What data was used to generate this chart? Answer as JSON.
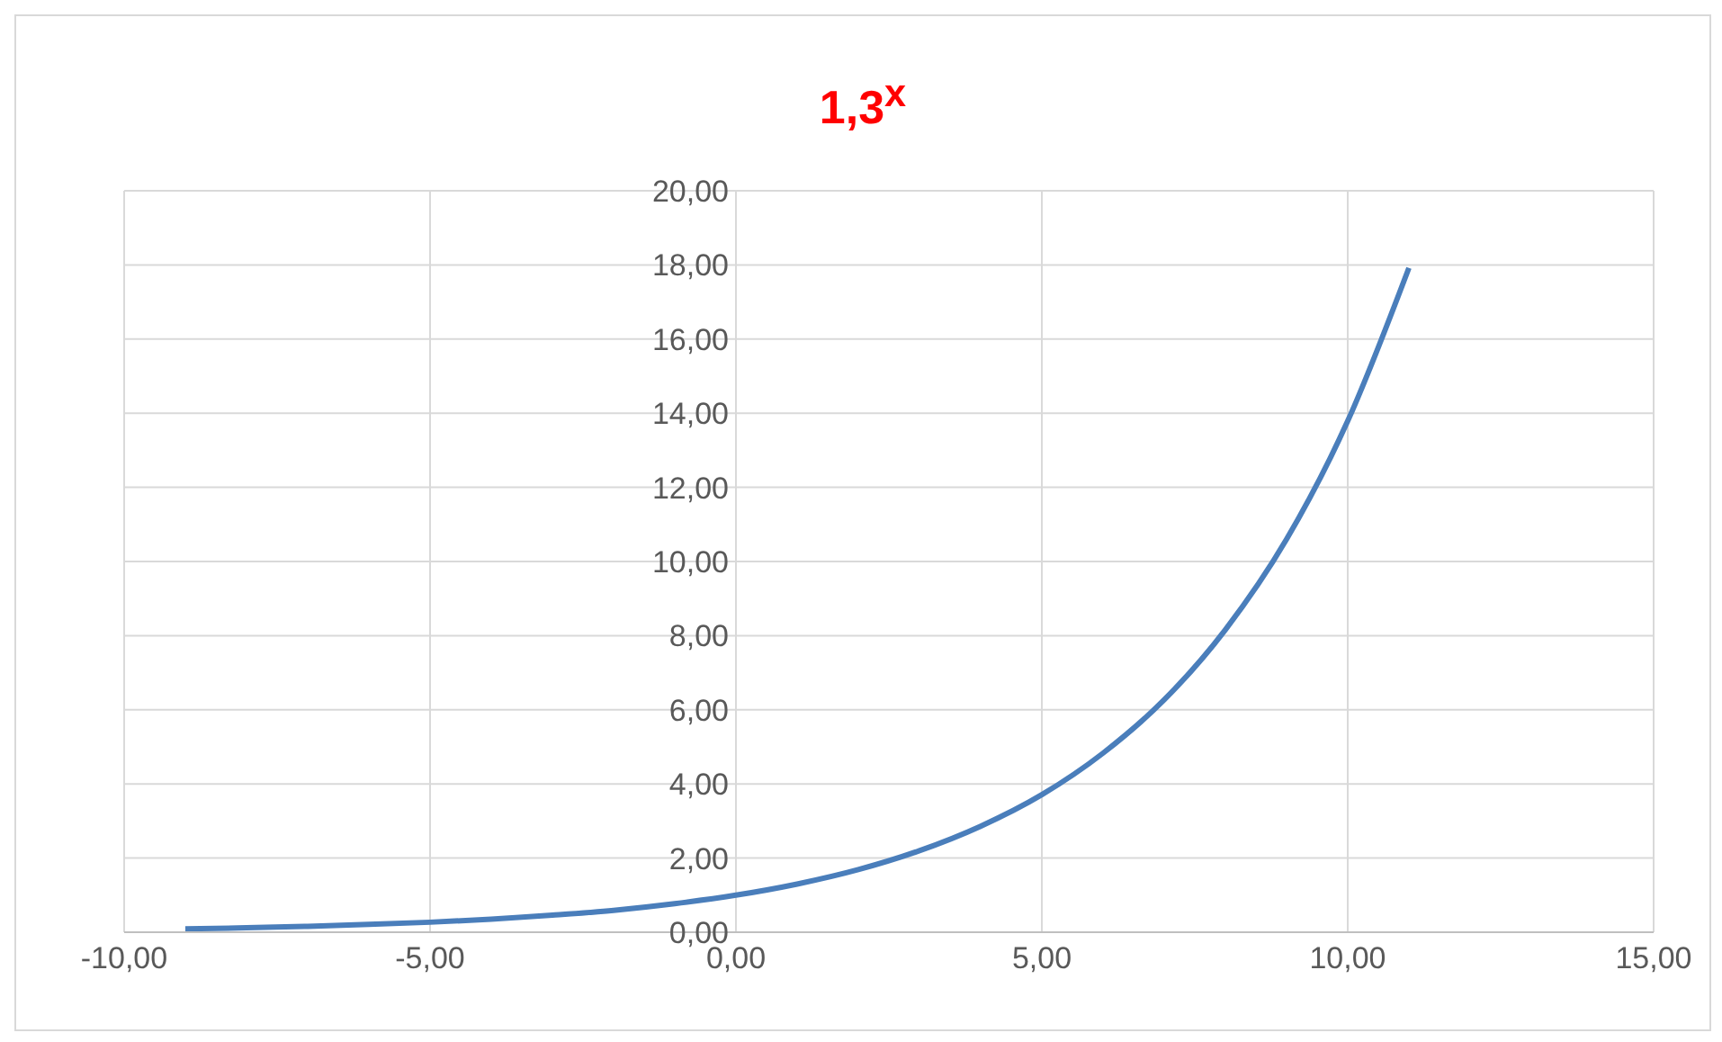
{
  "chart_data": {
    "type": "line",
    "title": "1,3$^{x}$",
    "x": [
      -9,
      -8,
      -7,
      -6,
      -5,
      -4,
      -3,
      -2,
      -1,
      0,
      1,
      2,
      3,
      4,
      5,
      6,
      7,
      8,
      9,
      10,
      11
    ],
    "series": [
      {
        "color": "#4a7ebb",
        "values": [
          0.09,
          0.12,
          0.16,
          0.21,
          0.27,
          0.35,
          0.46,
          0.59,
          0.77,
          1.0,
          1.3,
          1.69,
          2.2,
          2.86,
          3.71,
          4.83,
          6.27,
          8.16,
          10.6,
          13.79,
          17.92
        ]
      }
    ],
    "xlim": [
      -10,
      15
    ],
    "xticks": [
      {
        "value": -10,
        "label": "-10,00"
      },
      {
        "value": -5,
        "label": "-5,00"
      },
      {
        "value": 0,
        "label": "0,00"
      },
      {
        "value": 5,
        "label": "5,00"
      },
      {
        "value": 10,
        "label": "10,00"
      },
      {
        "value": 15,
        "label": "15,00"
      }
    ],
    "ylim": [
      0,
      20
    ],
    "yticks": [
      {
        "value": 0,
        "label": "0,00"
      },
      {
        "value": 2,
        "label": "2,00"
      },
      {
        "value": 4,
        "label": "4,00"
      },
      {
        "value": 6,
        "label": "6,00"
      },
      {
        "value": 8,
        "label": "8,00"
      },
      {
        "value": 10,
        "label": "10,00"
      },
      {
        "value": 12,
        "label": "12,00"
      },
      {
        "value": 14,
        "label": "14,00"
      },
      {
        "value": 16,
        "label": "16,00"
      },
      {
        "value": 18,
        "label": "18,00"
      },
      {
        "value": 20,
        "label": "20,00"
      }
    ],
    "grid": true,
    "marker": "none",
    "line_style": "solid"
  }
}
